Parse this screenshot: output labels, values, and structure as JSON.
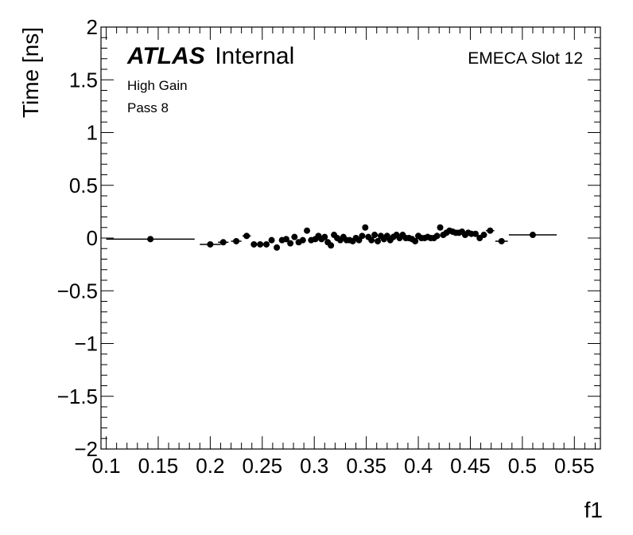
{
  "labels": {
    "atlas": "ATLAS",
    "status": "Internal",
    "gain": "High Gain",
    "pass": "Pass 8",
    "slot": "EMECA Slot 12"
  },
  "chart_data": {
    "type": "scatter",
    "title": "",
    "xlabel": "f1",
    "ylabel": "Time [ns]",
    "xlim": [
      0.095,
      0.575
    ],
    "ylim": [
      -2,
      2
    ],
    "xticks": [
      "0.1",
      "0.15",
      "0.2",
      "0.25",
      "0.3",
      "0.35",
      "0.4",
      "0.45",
      "0.5",
      "0.55"
    ],
    "yticks": [
      "−2",
      "−1.5",
      "−1",
      "−0.5",
      "0",
      "0.5",
      "1",
      "1.5",
      "2"
    ],
    "grid": false,
    "marker_color": "#000000",
    "points": [
      {
        "x": 0.1425,
        "y": -0.01,
        "xerr": 0.0425,
        "yerr": 0.012
      },
      {
        "x": 0.2,
        "y": -0.06,
        "xerr": 0.01,
        "yerr": 0.015
      },
      {
        "x": 0.2125,
        "y": -0.04,
        "xerr": 0.005,
        "yerr": 0.02
      },
      {
        "x": 0.225,
        "y": -0.03,
        "xerr": 0.005,
        "yerr": 0.015
      },
      {
        "x": 0.235,
        "y": 0.02,
        "xerr": 0.004,
        "yerr": 0.015
      },
      {
        "x": 0.242,
        "y": -0.06,
        "xerr": 0.003,
        "yerr": 0.02
      },
      {
        "x": 0.248,
        "y": -0.06,
        "xerr": 0.003,
        "yerr": 0.02
      },
      {
        "x": 0.254,
        "y": -0.06,
        "xerr": 0.003,
        "yerr": 0.02
      },
      {
        "x": 0.259,
        "y": -0.02,
        "xerr": 0.002,
        "yerr": 0.02
      },
      {
        "x": 0.264,
        "y": -0.09,
        "xerr": 0.002,
        "yerr": 0.02
      },
      {
        "x": 0.269,
        "y": -0.02,
        "xerr": 0.002,
        "yerr": 0.02
      },
      {
        "x": 0.273,
        "y": -0.01,
        "xerr": 0.002,
        "yerr": 0.02
      },
      {
        "x": 0.277,
        "y": -0.05,
        "xerr": 0.002,
        "yerr": 0.02
      },
      {
        "x": 0.281,
        "y": 0.01,
        "xerr": 0.002,
        "yerr": 0.02
      },
      {
        "x": 0.285,
        "y": -0.04,
        "xerr": 0.002,
        "yerr": 0.02
      },
      {
        "x": 0.289,
        "y": -0.02,
        "xerr": 0.002,
        "yerr": 0.02
      },
      {
        "x": 0.293,
        "y": 0.07,
        "xerr": 0.002,
        "yerr": 0.02
      },
      {
        "x": 0.297,
        "y": -0.02,
        "xerr": 0.002,
        "yerr": 0.02
      },
      {
        "x": 0.301,
        "y": -0.01,
        "xerr": 0.002,
        "yerr": 0.02
      },
      {
        "x": 0.304,
        "y": 0.02,
        "xerr": 0.002,
        "yerr": 0.02
      },
      {
        "x": 0.307,
        "y": -0.01,
        "xerr": 0.002,
        "yerr": 0.02
      },
      {
        "x": 0.31,
        "y": 0.01,
        "xerr": 0.002,
        "yerr": 0.02
      },
      {
        "x": 0.313,
        "y": -0.04,
        "xerr": 0.002,
        "yerr": 0.025
      },
      {
        "x": 0.316,
        "y": -0.07,
        "xerr": 0.002,
        "yerr": 0.025
      },
      {
        "x": 0.319,
        "y": 0.03,
        "xerr": 0.002,
        "yerr": 0.02
      },
      {
        "x": 0.322,
        "y": 0.0,
        "xerr": 0.002,
        "yerr": 0.02
      },
      {
        "x": 0.325,
        "y": -0.02,
        "xerr": 0.002,
        "yerr": 0.02
      },
      {
        "x": 0.328,
        "y": 0.01,
        "xerr": 0.002,
        "yerr": 0.02
      },
      {
        "x": 0.331,
        "y": -0.02,
        "xerr": 0.002,
        "yerr": 0.02
      },
      {
        "x": 0.334,
        "y": -0.02,
        "xerr": 0.002,
        "yerr": 0.02
      },
      {
        "x": 0.337,
        "y": -0.03,
        "xerr": 0.002,
        "yerr": 0.02
      },
      {
        "x": 0.34,
        "y": 0.0,
        "xerr": 0.002,
        "yerr": 0.02
      },
      {
        "x": 0.343,
        "y": -0.02,
        "xerr": 0.002,
        "yerr": 0.02
      },
      {
        "x": 0.346,
        "y": 0.02,
        "xerr": 0.002,
        "yerr": 0.02
      },
      {
        "x": 0.349,
        "y": 0.1,
        "xerr": 0.002,
        "yerr": 0.025
      },
      {
        "x": 0.352,
        "y": 0.01,
        "xerr": 0.002,
        "yerr": 0.02
      },
      {
        "x": 0.355,
        "y": -0.02,
        "xerr": 0.002,
        "yerr": 0.03
      },
      {
        "x": 0.358,
        "y": 0.03,
        "xerr": 0.002,
        "yerr": 0.03
      },
      {
        "x": 0.361,
        "y": -0.03,
        "xerr": 0.002,
        "yerr": 0.03
      },
      {
        "x": 0.364,
        "y": 0.02,
        "xerr": 0.002,
        "yerr": 0.03
      },
      {
        "x": 0.367,
        "y": -0.01,
        "xerr": 0.002,
        "yerr": 0.03
      },
      {
        "x": 0.37,
        "y": 0.02,
        "xerr": 0.002,
        "yerr": 0.03
      },
      {
        "x": 0.373,
        "y": -0.02,
        "xerr": 0.002,
        "yerr": 0.03
      },
      {
        "x": 0.376,
        "y": 0.01,
        "xerr": 0.002,
        "yerr": 0.03
      },
      {
        "x": 0.379,
        "y": 0.03,
        "xerr": 0.002,
        "yerr": 0.03
      },
      {
        "x": 0.382,
        "y": 0.0,
        "xerr": 0.002,
        "yerr": 0.03
      },
      {
        "x": 0.385,
        "y": 0.03,
        "xerr": 0.002,
        "yerr": 0.03
      },
      {
        "x": 0.388,
        "y": 0.0,
        "xerr": 0.002,
        "yerr": 0.03
      },
      {
        "x": 0.391,
        "y": 0.0,
        "xerr": 0.002,
        "yerr": 0.03
      },
      {
        "x": 0.394,
        "y": -0.01,
        "xerr": 0.002,
        "yerr": 0.03
      },
      {
        "x": 0.397,
        "y": -0.03,
        "xerr": 0.002,
        "yerr": 0.03
      },
      {
        "x": 0.4,
        "y": 0.02,
        "xerr": 0.002,
        "yerr": 0.03
      },
      {
        "x": 0.403,
        "y": 0.0,
        "xerr": 0.002,
        "yerr": 0.03
      },
      {
        "x": 0.406,
        "y": 0.0,
        "xerr": 0.002,
        "yerr": 0.03
      },
      {
        "x": 0.409,
        "y": 0.01,
        "xerr": 0.002,
        "yerr": 0.03
      },
      {
        "x": 0.412,
        "y": 0.0,
        "xerr": 0.002,
        "yerr": 0.03
      },
      {
        "x": 0.415,
        "y": 0.0,
        "xerr": 0.002,
        "yerr": 0.03
      },
      {
        "x": 0.418,
        "y": 0.02,
        "xerr": 0.002,
        "yerr": 0.03
      },
      {
        "x": 0.421,
        "y": 0.1,
        "xerr": 0.002,
        "yerr": 0.025
      },
      {
        "x": 0.424,
        "y": 0.03,
        "xerr": 0.002,
        "yerr": 0.025
      },
      {
        "x": 0.427,
        "y": 0.05,
        "xerr": 0.002,
        "yerr": 0.025
      },
      {
        "x": 0.43,
        "y": 0.07,
        "xerr": 0.002,
        "yerr": 0.025
      },
      {
        "x": 0.433,
        "y": 0.06,
        "xerr": 0.002,
        "yerr": 0.025
      },
      {
        "x": 0.436,
        "y": 0.05,
        "xerr": 0.002,
        "yerr": 0.025
      },
      {
        "x": 0.439,
        "y": 0.05,
        "xerr": 0.002,
        "yerr": 0.025
      },
      {
        "x": 0.442,
        "y": 0.06,
        "xerr": 0.002,
        "yerr": 0.025
      },
      {
        "x": 0.445,
        "y": 0.03,
        "xerr": 0.002,
        "yerr": 0.025
      },
      {
        "x": 0.448,
        "y": 0.05,
        "xerr": 0.002,
        "yerr": 0.025
      },
      {
        "x": 0.451,
        "y": 0.04,
        "xerr": 0.002,
        "yerr": 0.025
      },
      {
        "x": 0.455,
        "y": 0.04,
        "xerr": 0.002,
        "yerr": 0.025
      },
      {
        "x": 0.459,
        "y": 0.0,
        "xerr": 0.002,
        "yerr": 0.025
      },
      {
        "x": 0.463,
        "y": 0.03,
        "xerr": 0.003,
        "yerr": 0.025
      },
      {
        "x": 0.469,
        "y": 0.07,
        "xerr": 0.004,
        "yerr": 0.02
      },
      {
        "x": 0.48,
        "y": -0.03,
        "xerr": 0.006,
        "yerr": 0.025
      },
      {
        "x": 0.51,
        "y": 0.03,
        "xerr": 0.023,
        "yerr": 0.012
      }
    ]
  }
}
